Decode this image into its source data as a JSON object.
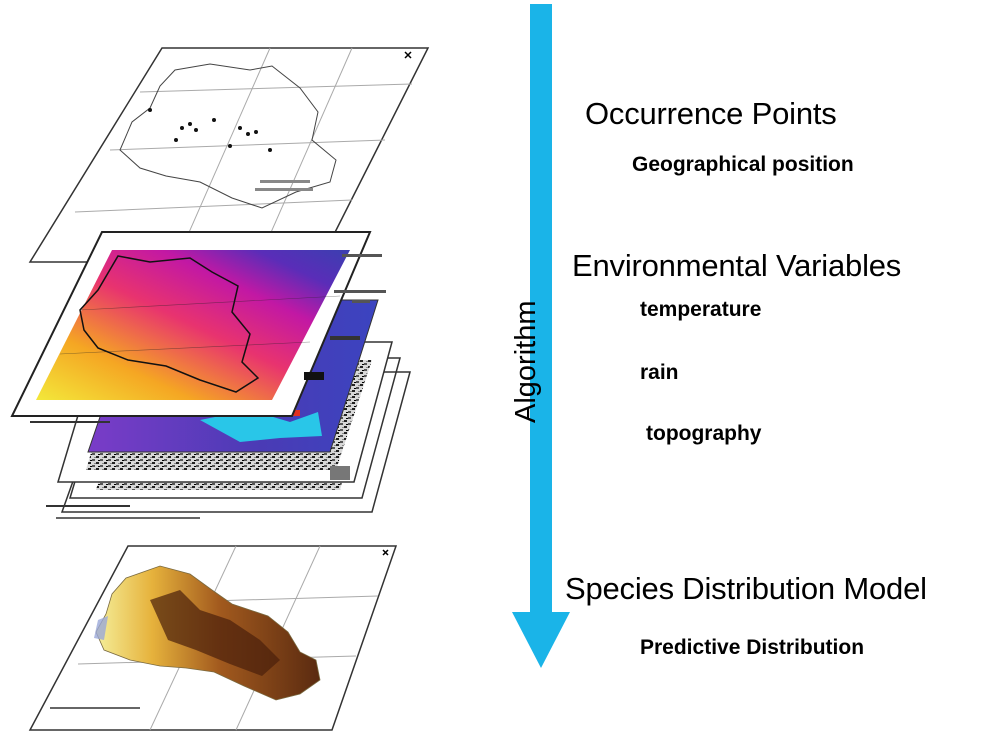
{
  "flow": {
    "axis_label": "Algorithm",
    "arrow_color": "#1ab4e8"
  },
  "steps": {
    "occurrence": {
      "title": "Occurrence Points",
      "detail": "Geographical position"
    },
    "environment": {
      "title": "Environmental Variables",
      "variables": [
        "temperature",
        "rain",
        "topography"
      ]
    },
    "model": {
      "title": "Species Distribution Model",
      "detail": "Predictive Distribution"
    }
  },
  "layers": {
    "heat_gradient": [
      "#f3e83a",
      "#f5a623",
      "#e8336f",
      "#c218a4",
      "#5a2db8",
      "#3b3fb0"
    ],
    "model_gradient": [
      "#f5ef9a",
      "#e6b23c",
      "#a25a1e",
      "#5a2a10"
    ]
  }
}
